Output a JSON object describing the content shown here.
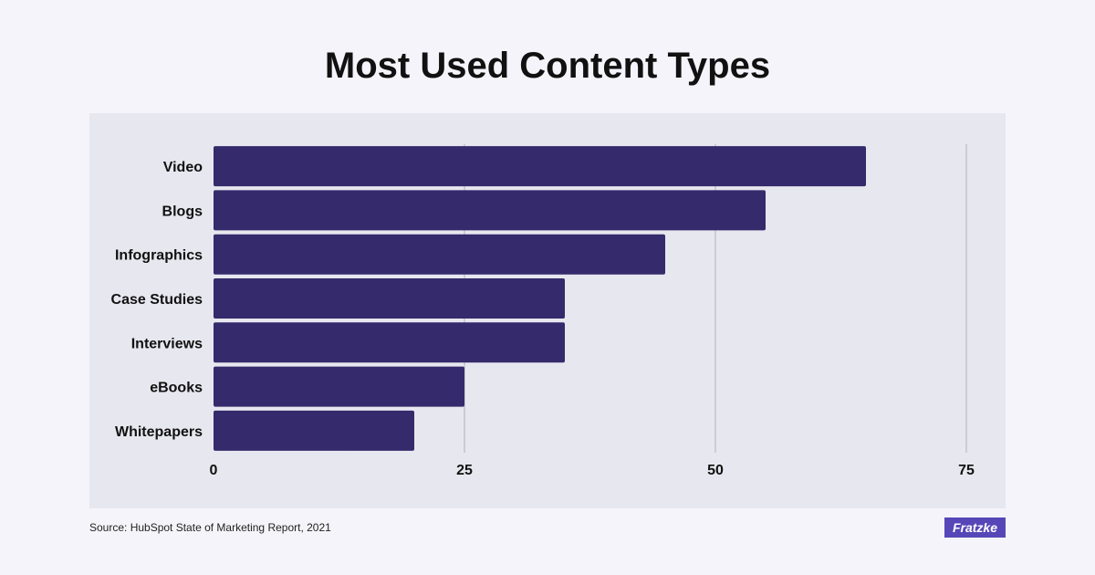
{
  "title": "Most Used Content Types",
  "source": "Source: HubSpot State of Marketing Report, 2021",
  "brand": "Fratzke",
  "colors": {
    "bar": "#352a6b",
    "grid": "#b0b0ba",
    "panel": "#e7e7ef",
    "background": "#f5f4fa",
    "brand": "#5547b8"
  },
  "chart_data": {
    "type": "bar",
    "orientation": "horizontal",
    "title": "Most Used Content Types",
    "categories": [
      "Video",
      "Blogs",
      "Infographics",
      "Case Studies",
      "Interviews",
      "eBooks",
      "Whitepapers"
    ],
    "values": [
      65,
      55,
      45,
      35,
      35,
      25,
      20
    ],
    "xlim": [
      0,
      75
    ],
    "xticks": [
      0,
      25,
      50,
      75
    ],
    "xlabel": "",
    "ylabel": "",
    "grid": "vertical",
    "legend": "none"
  }
}
